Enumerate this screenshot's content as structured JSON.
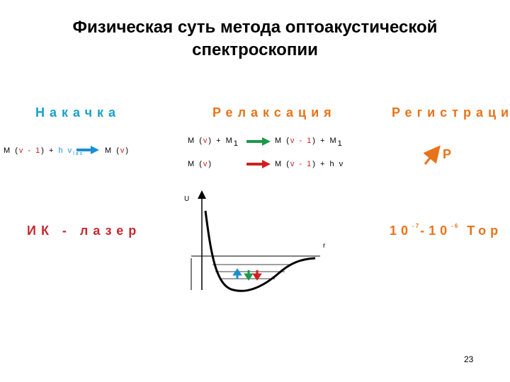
{
  "title": [
    "Физическая суть метода оптоакустической",
    "спектроскопии"
  ],
  "columns": [
    "Накачка",
    "Релаксация",
    "Регистрация"
  ],
  "pumping": {
    "left": [
      "M (",
      "v - 1",
      ") + ",
      "h ν",
      "las"
    ],
    "right": [
      "M (",
      "v",
      ")"
    ]
  },
  "relaxation": [
    {
      "left": [
        "M (",
        "v",
        ") + M",
        "1"
      ],
      "right": [
        "M (",
        "v - 1",
        ") + M",
        "1"
      ]
    },
    {
      "left": [
        "M (",
        "v",
        ")"
      ],
      "right": [
        "M (",
        "v - 1",
        ") + h ν"
      ]
    }
  ],
  "registration": "P",
  "laser": "ИК - лазер",
  "pressure": [
    "10",
    "-7",
    "-10",
    "-6",
    " Тор"
  ],
  "graph": {
    "y_label": "U",
    "x_label": "r"
  },
  "page_number": "23"
}
